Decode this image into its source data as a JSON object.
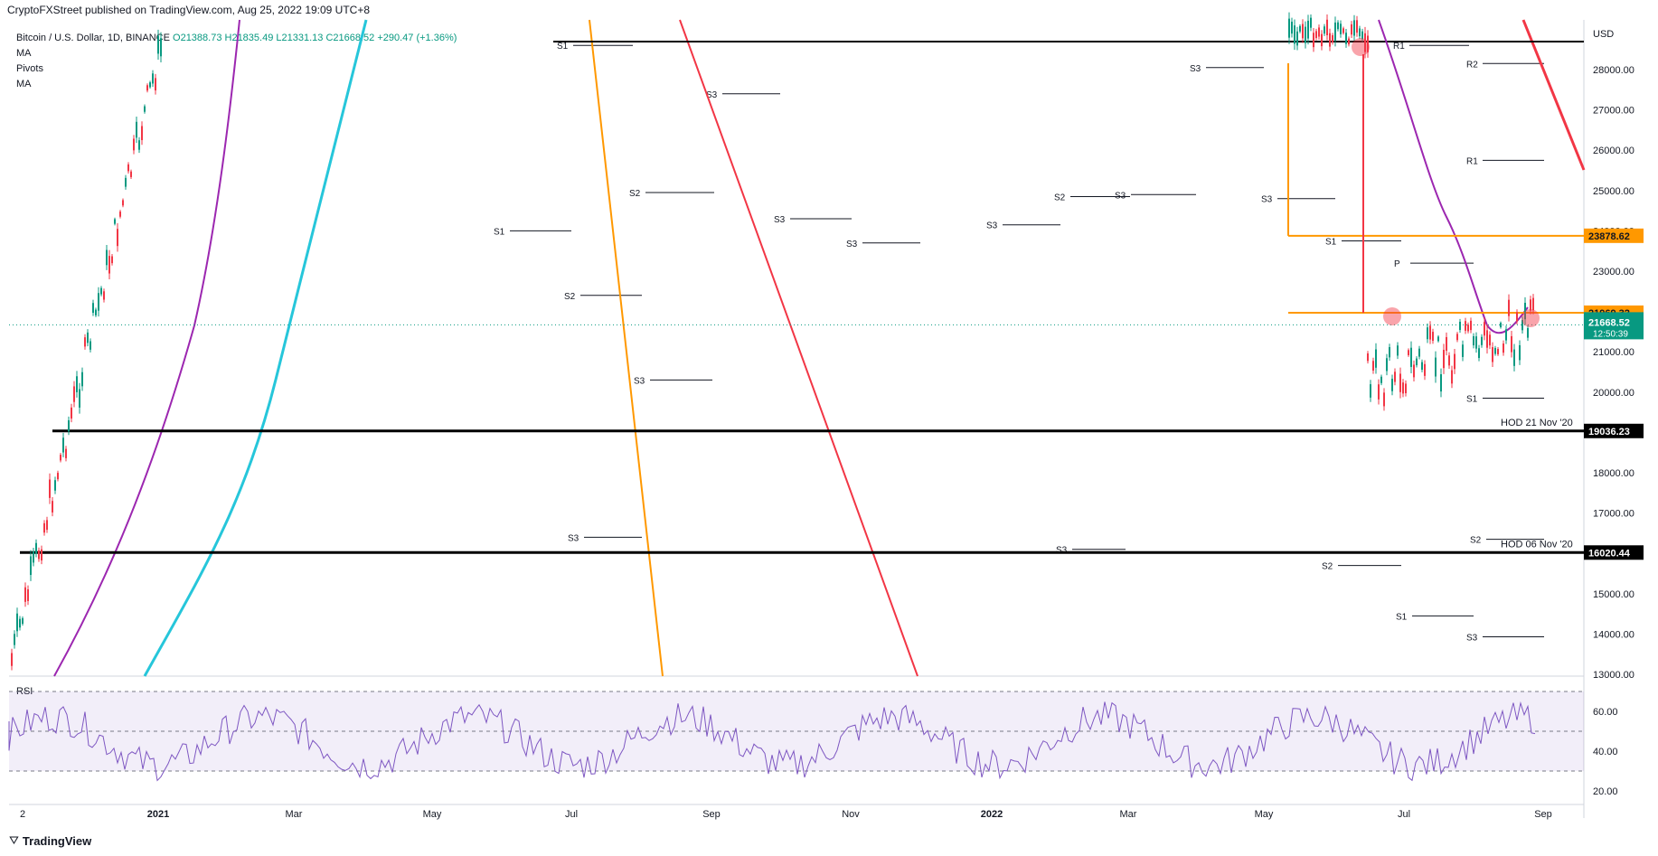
{
  "header": {
    "publisher": "CryptoFXStreet published on TradingView.com, Aug 25, 2022 19:09 UTC+8"
  },
  "legend": {
    "symbol": "Bitcoin / U.S. Dollar, 1D, BINANCE",
    "ohlc": "O21388.73  H21835.49  L21331.13  C21668.52  +290.47 (+1.36%)",
    "lines": [
      "MA",
      "Pivots",
      "MA"
    ]
  },
  "footer": {
    "brand": "TradingView"
  },
  "colors": {
    "up": "#089981",
    "down": "#f23645",
    "ma_fast": "#9c27b0",
    "ma_slow": "#26c6da",
    "orange": "#ff9800",
    "red_trend": "#f23645",
    "black": "#000000",
    "rsi": "#7e57c2"
  },
  "chart_data": [
    {
      "type": "line",
      "title": "",
      "ylabel": "USD",
      "ylim": [
        13000,
        29700
      ],
      "x_ticks": [
        "2",
        "2021",
        "Mar",
        "May",
        "Jul",
        "Sep",
        "Nov",
        "2022",
        "Mar",
        "May",
        "Jul",
        "Sep"
      ],
      "y_ticks": [
        13000,
        14000,
        15000,
        16000,
        17000,
        18000,
        19000,
        20000,
        21000,
        22000,
        23000,
        24000,
        25000,
        26000,
        27000,
        28000
      ],
      "y_tick_labels": [
        "13000.00",
        "14000.00",
        "15000.00",
        "16000.00",
        "17000.00",
        "18000.00",
        "19000.00",
        "20000.00",
        "21000.00",
        "22000.00",
        "23000.00",
        "24000.00",
        "25000.00",
        "26000.00",
        "27000.00",
        "28000.00"
      ],
      "last_price": {
        "value": "21668.52",
        "countdown": "12:50:39"
      },
      "horizontal_levels": [
        {
          "label": "HOD 21 Nov '20",
          "value": 19036.23,
          "badge": "19036.23",
          "color": "#000000"
        },
        {
          "label": "HOD 06 Nov '20",
          "value": 16020.44,
          "badge": "16020.44",
          "color": "#000000"
        },
        {
          "label": "",
          "value": 23878.62,
          "badge": "23878.62",
          "color": "#ff9800"
        },
        {
          "label": "",
          "value": 21969.32,
          "badge": "21969.32",
          "color": "#ff9800"
        }
      ],
      "pivot_labels": [
        {
          "t": "S1",
          "y": 28600
        },
        {
          "t": "S3",
          "y": 28050
        },
        {
          "t": "S3",
          "y": 27400
        },
        {
          "t": "S2",
          "y": 24950
        },
        {
          "t": "S1",
          "y": 24000
        },
        {
          "t": "S3",
          "y": 24300
        },
        {
          "t": "S3",
          "y": 23700
        },
        {
          "t": "S2",
          "y": 24850
        },
        {
          "t": "S3",
          "y": 24900
        },
        {
          "t": "S3",
          "y": 24150
        },
        {
          "t": "S3",
          "y": 24800
        },
        {
          "t": "S2",
          "y": 22400
        },
        {
          "t": "S3",
          "y": 20300
        },
        {
          "t": "S3",
          "y": 16400
        },
        {
          "t": "S3",
          "y": 16100
        },
        {
          "t": "S1",
          "y": 23750
        },
        {
          "t": "P",
          "y": 23200
        },
        {
          "t": "R1",
          "y": 28600
        },
        {
          "t": "R2",
          "y": 28150
        },
        {
          "t": "R1",
          "y": 25750
        },
        {
          "t": "S1",
          "y": 19850
        },
        {
          "t": "S2",
          "y": 16350
        },
        {
          "t": "S2",
          "y": 15700
        },
        {
          "t": "S1",
          "y": 14450
        },
        {
          "t": "S3",
          "y": 13930
        }
      ],
      "series": [
        {
          "name": "MA",
          "color": "#9c27b0"
        },
        {
          "name": "MA",
          "color": "#26c6da"
        }
      ]
    },
    {
      "type": "line",
      "title": "RSI",
      "ylim": [
        15,
        77
      ],
      "y_ticks": [
        20,
        40,
        60
      ],
      "y_tick_labels": [
        "20.00",
        "40.00",
        "60.00"
      ],
      "bands": [
        30,
        50,
        70
      ]
    }
  ]
}
